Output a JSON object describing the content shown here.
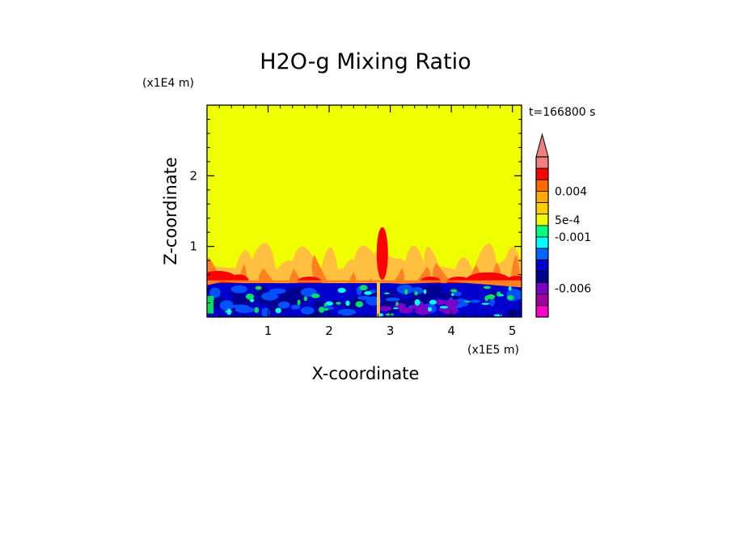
{
  "chart_data": {
    "type": "heatmap",
    "title": "H2O-g Mixing Ratio",
    "xlabel": "X-coordinate",
    "ylabel": "Z-coordinate",
    "x_unit": "(x1E5 m)",
    "y_unit": "(x1E4 m)",
    "time_label": "t=166800 s",
    "xlim": [
      0,
      5.15
    ],
    "ylim": [
      0,
      3.0
    ],
    "x_ticks": [
      {
        "value": 1,
        "label": "1"
      },
      {
        "value": 2,
        "label": "2"
      },
      {
        "value": 3,
        "label": "3"
      },
      {
        "value": 4,
        "label": "4"
      },
      {
        "value": 5,
        "label": "5"
      }
    ],
    "y_ticks": [
      {
        "value": 1,
        "label": "1"
      },
      {
        "value": 2,
        "label": "2"
      }
    ],
    "background_level_color": "#f0ff00",
    "colorbar": {
      "extend": "max",
      "levels_top_to_bottom": [
        {
          "color": "#f08080"
        },
        {
          "color": "#ff0000"
        },
        {
          "color": "#ff6a00"
        },
        {
          "color": "#ffaa00"
        },
        {
          "color": "#ffd000"
        },
        {
          "color": "#f0ff00"
        },
        {
          "color": "#00ff80"
        },
        {
          "color": "#00ffff"
        },
        {
          "color": "#0066ff"
        },
        {
          "color": "#0000cd"
        },
        {
          "color": "#000090"
        },
        {
          "color": "#7b00c8"
        },
        {
          "color": "#a000a0"
        },
        {
          "color": "#ff00c8"
        }
      ],
      "tick_labels": [
        {
          "label": "0.004",
          "level_boundary": 3
        },
        {
          "label": "5e-4",
          "level_boundary": 5.5
        },
        {
          "label": "-0.001",
          "level_boundary": 7
        },
        {
          "label": "-0.006",
          "level_boundary": 11.5
        }
      ]
    }
  },
  "colors": {
    "yellow": "#f0ff00",
    "light_orange": "#ffc040",
    "orange": "#ff8020",
    "red": "#ff0000",
    "blue": "#0000cd",
    "dark_blue": "#000090",
    "mid_blue": "#0050ff",
    "cyan": "#00ffff",
    "green": "#00e060",
    "purple": "#7b00c8"
  }
}
